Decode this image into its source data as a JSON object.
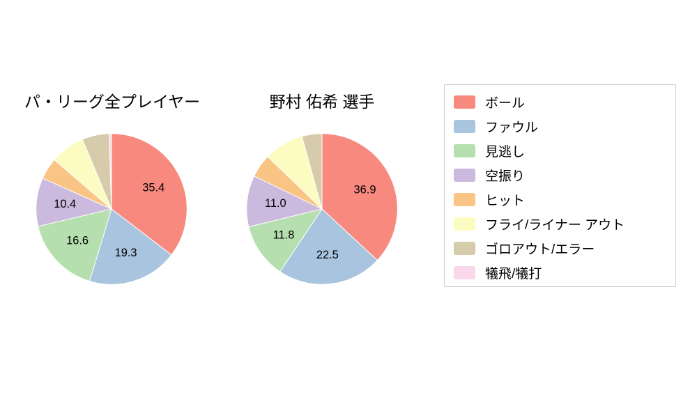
{
  "legend": {
    "position": "right",
    "items": [
      {
        "key": "ball",
        "label": "ボール",
        "color": "#f7897f"
      },
      {
        "key": "foul",
        "label": "ファウル",
        "color": "#a8c4de"
      },
      {
        "key": "called-strike",
        "label": "見逃し",
        "color": "#b5dfae"
      },
      {
        "key": "swinging-strike",
        "label": "空振り",
        "color": "#ccbade"
      },
      {
        "key": "hit",
        "label": "ヒット",
        "color": "#fac484"
      },
      {
        "key": "fly-liner-out",
        "label": "フライ/ライナー アウト",
        "color": "#fcfcc2"
      },
      {
        "key": "ground-out-error",
        "label": "ゴロアウト/エラー",
        "color": "#d6ccab"
      },
      {
        "key": "sac-fly-bunt",
        "label": "犠飛/犠打",
        "color": "#fad8ec"
      }
    ]
  },
  "chart_data": [
    {
      "type": "pie",
      "title": "パ・リーグ全プレイヤー",
      "labels": [
        "ボール",
        "ファウル",
        "見逃し",
        "空振り",
        "ヒット",
        "フライ/ライナー アウト",
        "ゴロアウト/エラー",
        "犠飛/犠打"
      ],
      "values": [
        35.4,
        19.3,
        16.6,
        10.4,
        4.6,
        7.4,
        5.8,
        0.5
      ],
      "shown_value_labels": [
        35.4,
        19.3,
        16.6,
        10.4
      ],
      "label_threshold": 10,
      "start_angle_deg": 90,
      "direction": "clockwise",
      "units": "percent"
    },
    {
      "type": "pie",
      "title": "野村 佑希 選手",
      "labels": [
        "ボール",
        "ファウル",
        "見逃し",
        "空振り",
        "ヒット",
        "フライ/ライナー アウト",
        "ゴロアウト/エラー",
        "犠飛/犠打"
      ],
      "values": [
        36.9,
        22.5,
        11.8,
        11.0,
        5.0,
        8.5,
        4.3,
        0.0
      ],
      "shown_value_labels": [
        36.9,
        22.5,
        11.8,
        11.0
      ],
      "label_threshold": 10,
      "start_angle_deg": 90,
      "direction": "clockwise",
      "units": "percent"
    }
  ]
}
